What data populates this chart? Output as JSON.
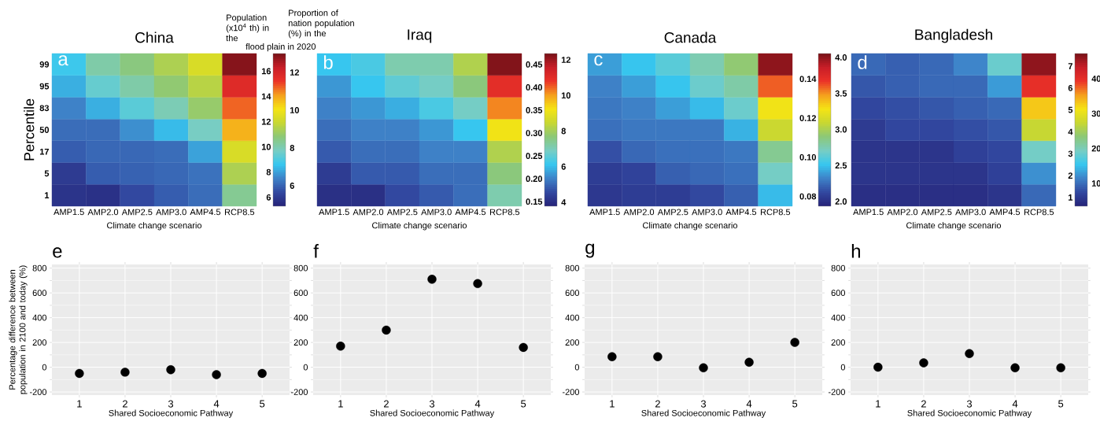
{
  "chart_data": [
    {
      "type": "heatmap",
      "title": "China",
      "xlabel": "Climate change scenario",
      "ylabel": "Percentile",
      "clabel": "Population (x10$^{4}$ th) in the",
      "annotations": [
        "a",
        "Proportion of nation population (%) in the",
        "flood plain in 2020",
        "12",
        "10",
        "8",
        "6"
      ],
      "categories": [
        "AMP1.5",
        "AMP2.0",
        "AMP2.5",
        "AMP3.0",
        "AMP4.5",
        "RCP8.5"
      ],
      "y_categories": [
        "99",
        "95",
        "83",
        "50",
        "17",
        "5",
        "1"
      ],
      "cells": [
        [
          8.7,
          10.1,
          10.7,
          11.4,
          12.3,
          17.2
        ],
        [
          8.2,
          9.4,
          10.1,
          10.9,
          11.6,
          15.6
        ],
        [
          7.5,
          8.2,
          9.2,
          9.9,
          11.0,
          14.7
        ],
        [
          7.1,
          7.1,
          7.7,
          8.4,
          9.7,
          13.8
        ],
        [
          6.8,
          7.0,
          7.0,
          7.1,
          8.0,
          12.3
        ],
        [
          6.0,
          6.8,
          6.9,
          7.0,
          7.2,
          11.4
        ],
        [
          5.8,
          5.7,
          6.4,
          6.8,
          7.1,
          10.4
        ]
      ],
      "clim": [
        5.3,
        17.4
      ],
      "cticks": [
        6,
        8,
        10,
        12,
        14,
        16
      ]
    },
    {
      "type": "heatmap",
      "title": "Iraq",
      "xlabel": "Climate change scenario",
      "tick_labels": "x",
      "annotations": [
        "b",
        "12",
        "10",
        "8",
        "6",
        "4"
      ],
      "categories": [
        "AMP1.5",
        "AMP2.0",
        "AMP2.5",
        "AMP3.0",
        "AMP4.5",
        "RCP8.5"
      ],
      "y_categories": [
        "99",
        "95",
        "83",
        "50",
        "17",
        "5",
        "1"
      ],
      "cells": [
        [
          0.23,
          0.24,
          0.27,
          0.27,
          0.31,
          0.47
        ],
        [
          0.21,
          0.23,
          0.25,
          0.26,
          0.29,
          0.42
        ],
        [
          0.2,
          0.21,
          0.22,
          0.24,
          0.26,
          0.39
        ],
        [
          0.19,
          0.2,
          0.2,
          0.21,
          0.23,
          0.35
        ],
        [
          0.18,
          0.19,
          0.19,
          0.2,
          0.2,
          0.31
        ],
        [
          0.16,
          0.18,
          0.18,
          0.19,
          0.19,
          0.29
        ],
        [
          0.15,
          0.15,
          0.17,
          0.18,
          0.19,
          0.27
        ]
      ],
      "clim": [
        0.14,
        0.474
      ],
      "cticks": [
        0.15,
        {
          "value": 0.2,
          "label": "0.20"
        },
        0.25,
        {
          "value": 0.3,
          "label": "0.30"
        },
        0.35,
        {
          "value": 0.4,
          "label": "0.40"
        },
        0.45
      ]
    },
    {
      "type": "heatmap",
      "title": "Canada",
      "xlabel": "Climate change scenario",
      "tick_labels": "x",
      "annotations": [
        "c",
        "4.0",
        "3.5",
        "3.0",
        "2.5",
        "2.0"
      ],
      "categories": [
        "AMP1.5",
        "AMP2.0",
        "AMP2.5",
        "AMP3.0",
        "AMP4.5",
        "RCP8.5"
      ],
      "y_categories": [
        "99",
        "95",
        "83",
        "50",
        "17",
        "5",
        "1"
      ],
      "cells": [
        [
          0.092,
          0.096,
          0.1,
          0.105,
          0.111,
          0.151
        ],
        [
          0.089,
          0.092,
          0.096,
          0.102,
          0.106,
          0.136
        ],
        [
          0.088,
          0.089,
          0.092,
          0.095,
          0.102,
          0.124
        ],
        [
          0.087,
          0.088,
          0.088,
          0.088,
          0.094,
          0.118
        ],
        [
          0.083,
          0.086,
          0.087,
          0.087,
          0.088,
          0.108
        ],
        [
          0.08,
          0.081,
          0.085,
          0.086,
          0.087,
          0.103
        ],
        [
          0.079,
          0.08,
          0.08,
          0.082,
          0.085,
          0.095
        ]
      ],
      "clim": [
        0.075,
        0.153
      ],
      "cticks": [
        0.08,
        {
          "value": 0.1,
          "label": "0.10"
        },
        0.12,
        0.14
      ]
    },
    {
      "type": "heatmap",
      "title": "Bangladesh",
      "xlabel": "Climate change scenario",
      "tick_labels": "x",
      "annotations": [
        "d",
        "40",
        "30",
        "20",
        "10"
      ],
      "categories": [
        "AMP1.5",
        "AMP2.0",
        "AMP2.5",
        "AMP3.0",
        "AMP4.5",
        "RCP8.5"
      ],
      "y_categories": [
        "99",
        "95",
        "83",
        "50",
        "17",
        "5",
        "1"
      ],
      "cells": [
        [
          1.6,
          1.5,
          1.6,
          1.9,
          3.0,
          7.4
        ],
        [
          1.4,
          1.5,
          1.6,
          1.6,
          2.1,
          6.4
        ],
        [
          1.2,
          1.3,
          1.4,
          1.5,
          1.6,
          5.3
        ],
        [
          1.0,
          1.2,
          1.2,
          1.3,
          1.4,
          4.4
        ],
        [
          0.9,
          0.9,
          0.9,
          1.1,
          1.2,
          3.1
        ],
        [
          0.9,
          0.9,
          0.9,
          0.9,
          1.1,
          2.0
        ],
        [
          0.8,
          0.8,
          0.8,
          0.8,
          0.9,
          1.6
        ]
      ],
      "clim": [
        0.6,
        7.58
      ],
      "cticks": [
        1,
        2,
        3,
        4,
        5,
        6,
        7
      ]
    },
    {
      "type": "scatter",
      "xlabel": "Shared Socioeconomic Pathway",
      "ylabel": "Percentage difference between population in 2100 and today (%)",
      "annotations": [
        "e"
      ],
      "x": [
        1,
        2,
        3,
        4,
        5
      ],
      "values": [
        -50,
        -40,
        -20,
        -60,
        -50
      ],
      "color": "#000000",
      "marker": "circle",
      "grid": true,
      "xlim": [
        0.4,
        5.6
      ],
      "ylim": [
        -225,
        830
      ],
      "xticks": [
        1,
        2,
        3,
        4,
        5
      ],
      "yticks": [
        -200,
        0,
        200,
        400,
        600,
        800
      ]
    },
    {
      "type": "scatter",
      "xlabel": "Shared Socioeconomic Pathway",
      "annotations": [
        "f"
      ],
      "x": [
        1,
        2,
        3,
        4,
        5
      ],
      "values": [
        170,
        300,
        710,
        675,
        160
      ],
      "color": "#000000",
      "marker": "circle",
      "grid": true,
      "xlim": [
        0.4,
        5.6
      ],
      "ylim": [
        -225,
        830
      ],
      "xticks": [
        1,
        2,
        3,
        4,
        5
      ],
      "yticks": [
        -200,
        0,
        200,
        400,
        600,
        800
      ]
    },
    {
      "type": "scatter",
      "xlabel": "Shared Socioeconomic Pathway",
      "annotations": [
        "g"
      ],
      "x": [
        1,
        2,
        3,
        4,
        5
      ],
      "values": [
        85,
        85,
        -5,
        40,
        200
      ],
      "color": "#000000",
      "marker": "circle",
      "grid": true,
      "xlim": [
        0.4,
        5.6
      ],
      "ylim": [
        -225,
        830
      ],
      "xticks": [
        1,
        2,
        3,
        4,
        5
      ],
      "yticks": [
        -200,
        0,
        200,
        400,
        600,
        800
      ]
    },
    {
      "type": "scatter",
      "xlabel": "Shared Socioeconomic Pathway",
      "annotations": [
        "h"
      ],
      "x": [
        1,
        2,
        3,
        4,
        5
      ],
      "values": [
        0,
        35,
        110,
        -5,
        -5
      ],
      "color": "#000000",
      "marker": "circle",
      "grid": true,
      "xlim": [
        0.4,
        5.6
      ],
      "ylim": [
        -225,
        830
      ],
      "xticks": [
        1,
        2,
        3,
        4,
        5
      ],
      "yticks": [
        -200,
        0,
        200,
        400,
        600,
        800
      ]
    }
  ]
}
